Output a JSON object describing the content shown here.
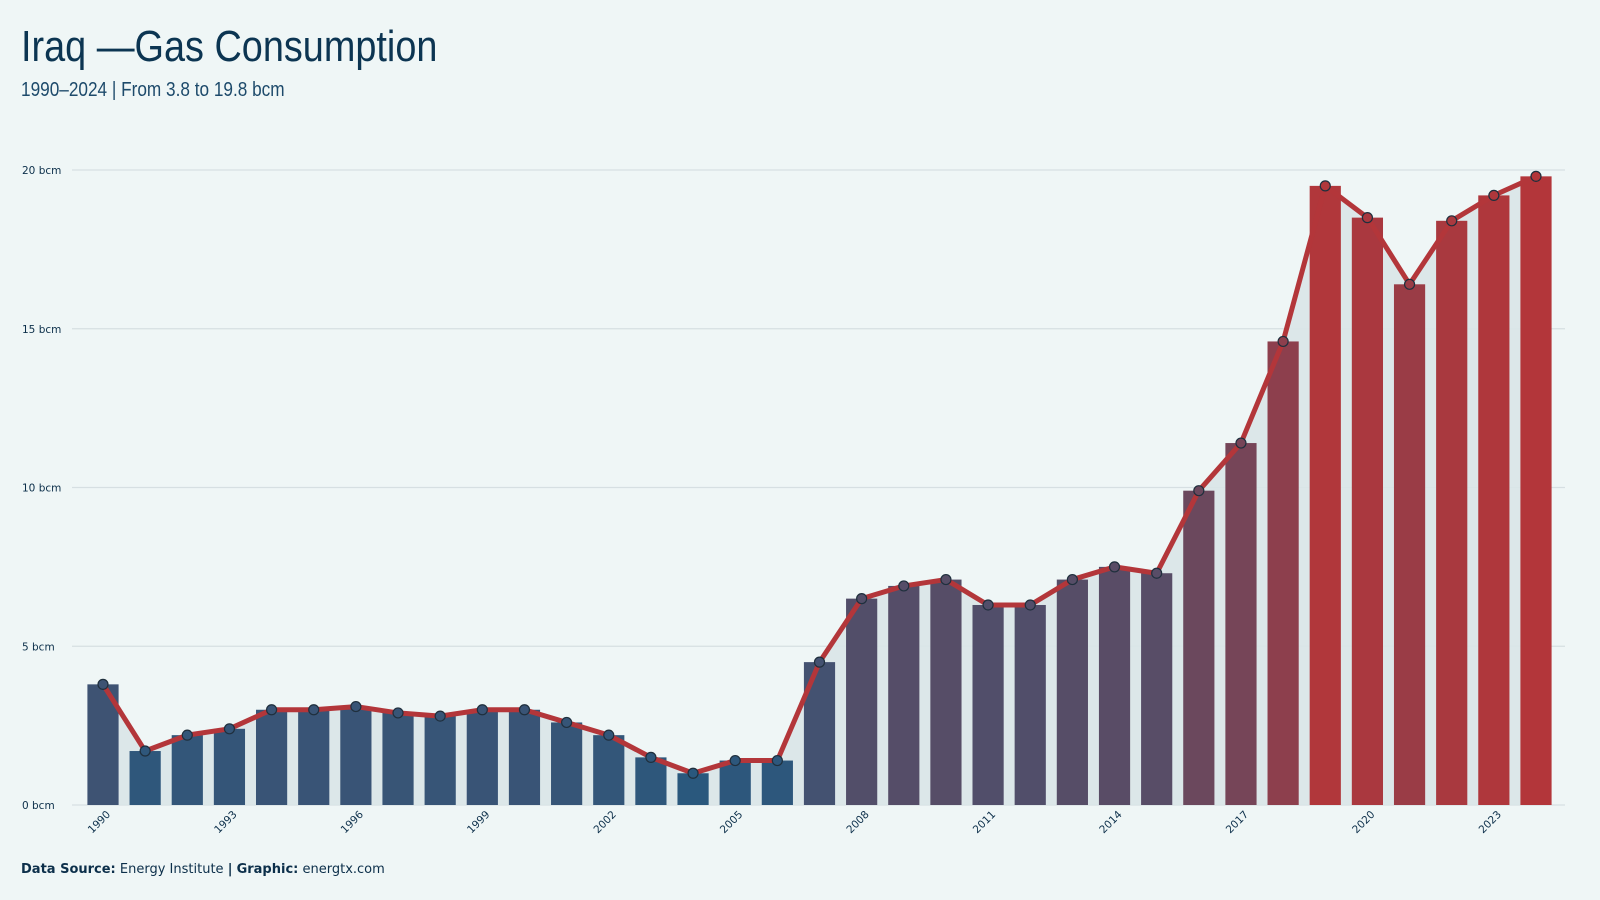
{
  "header": {
    "title": "Iraq —Gas Consumption",
    "subtitle": "1990–2024 | From 3.8 to 19.8 bcm"
  },
  "footer": {
    "source_label": "Data Source:",
    "source_value": "Energy Institute",
    "separator": "|",
    "graphic_label": "Graphic:",
    "graphic_value": "energtx.com"
  },
  "colors": {
    "background": "#eff6f6",
    "low": "#2a587d",
    "high": "#b3363a",
    "line": "#b3363a",
    "marker": "#3c5a73",
    "grid": "#d6dfe2",
    "area": "#d9e6e8"
  },
  "chart_data": {
    "type": "bar",
    "x": [
      1990,
      1991,
      1992,
      1993,
      1994,
      1995,
      1996,
      1997,
      1998,
      1999,
      2000,
      2001,
      2002,
      2003,
      2004,
      2005,
      2006,
      2007,
      2008,
      2009,
      2010,
      2011,
      2012,
      2013,
      2014,
      2015,
      2016,
      2017,
      2018,
      2019,
      2020,
      2021,
      2022,
      2023,
      2024
    ],
    "values": [
      3.8,
      1.7,
      2.2,
      2.4,
      3.0,
      3.0,
      3.1,
      2.9,
      2.8,
      3.0,
      3.0,
      2.6,
      2.2,
      1.5,
      1.0,
      1.4,
      1.4,
      4.5,
      6.5,
      6.9,
      7.1,
      6.3,
      6.3,
      7.1,
      7.5,
      7.3,
      9.9,
      11.4,
      14.6,
      19.5,
      18.5,
      16.4,
      18.4,
      19.2,
      19.8
    ],
    "xticks": [
      "1990",
      "1993",
      "1996",
      "1999",
      "2002",
      "2005",
      "2008",
      "2011",
      "2014",
      "2017",
      "2020",
      "2023"
    ],
    "yticks": [
      "0 bcm",
      "5 bcm",
      "10 bcm",
      "15 bcm",
      "20 bcm"
    ],
    "ytick_values": [
      0,
      5,
      10,
      15,
      20
    ],
    "ylim": [
      0,
      20
    ],
    "unit": "bcm",
    "grid": true,
    "overlay": "line with markers"
  }
}
